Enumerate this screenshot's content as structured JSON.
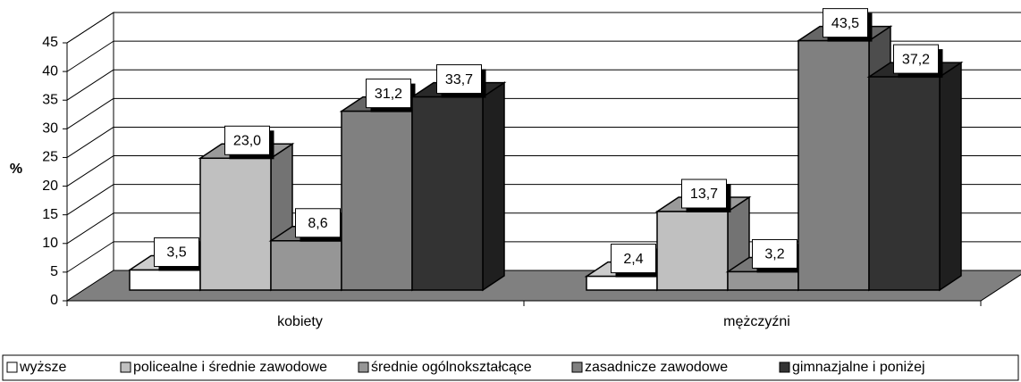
{
  "chart_data": {
    "type": "bar3d",
    "y_label": "%",
    "categories": [
      "kobiety",
      "mężczyźni"
    ],
    "series": [
      {
        "name": "wyższe",
        "color": "#ffffff",
        "values": [
          3.5,
          2.4
        ],
        "value_labels": [
          "3,5",
          "2,4"
        ]
      },
      {
        "name": "policealne i średnie zawodowe",
        "color": "#c0c0c0",
        "values": [
          23.0,
          13.7
        ],
        "value_labels": [
          "23,0",
          "13,7"
        ]
      },
      {
        "name": "średnie ogólnokształcące",
        "color": "#969696",
        "values": [
          8.6,
          3.2
        ],
        "value_labels": [
          "8,6",
          "3,2"
        ]
      },
      {
        "name": "zasadnicze zawodowe",
        "color": "#808080",
        "values": [
          31.2,
          43.5
        ],
        "value_labels": [
          "31,2",
          "43,5"
        ]
      },
      {
        "name": "gimnazjalne i poniżej",
        "color": "#333333",
        "values": [
          33.7,
          37.2
        ],
        "value_labels": [
          "33,7",
          "37,2"
        ]
      }
    ],
    "ylim": [
      0,
      45
    ],
    "yticks": [
      0,
      5,
      10,
      15,
      20,
      25,
      30,
      35,
      40,
      45
    ],
    "grid": true,
    "legend": "bottom"
  }
}
